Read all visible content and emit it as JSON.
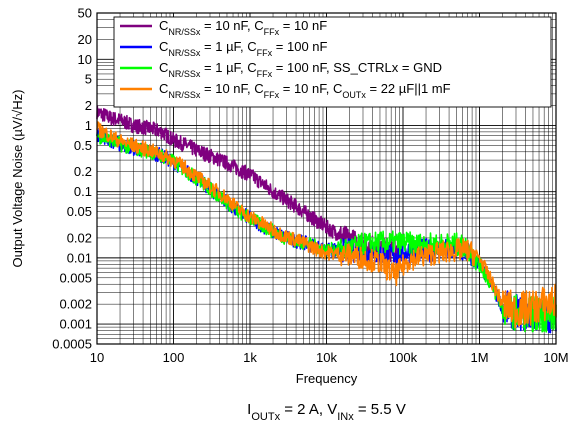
{
  "chart_data": {
    "type": "line",
    "xlabel": "Frequency",
    "ylabel": "Output Voltage Noise (µV/√Hz)",
    "xscale": "log",
    "yscale": "log",
    "xlim": [
      10,
      10000000
    ],
    "ylim": [
      0.0005,
      50
    ],
    "grid": true,
    "legend_position": "top-right",
    "xticks": [
      {
        "value": 10,
        "label": "10"
      },
      {
        "value": 100,
        "label": "100"
      },
      {
        "value": 1000,
        "label": "1k"
      },
      {
        "value": 10000,
        "label": "10k"
      },
      {
        "value": 100000,
        "label": "100k"
      },
      {
        "value": 1000000,
        "label": "1M"
      },
      {
        "value": 10000000,
        "label": "10M"
      }
    ],
    "yticks": [
      {
        "value": 50,
        "label": "50"
      },
      {
        "value": 20,
        "label": "20"
      },
      {
        "value": 10,
        "label": "10"
      },
      {
        "value": 5,
        "label": "5"
      },
      {
        "value": 2,
        "label": "2"
      },
      {
        "value": 1,
        "label": "1"
      },
      {
        "value": 0.5,
        "label": "0.5"
      },
      {
        "value": 0.2,
        "label": "0.2"
      },
      {
        "value": 0.1,
        "label": "0.1"
      },
      {
        "value": 0.05,
        "label": "0.05"
      },
      {
        "value": 0.02,
        "label": "0.02"
      },
      {
        "value": 0.01,
        "label": "0.01"
      },
      {
        "value": 0.005,
        "label": "0.005"
      },
      {
        "value": 0.002,
        "label": "0.002"
      },
      {
        "value": 0.001,
        "label": "0.001"
      },
      {
        "value": 0.0005,
        "label": "0.0005"
      }
    ],
    "series": [
      {
        "name": "C_NR/SSx = 10 nF, C_FFx = 10 nF",
        "legend_parts": [
          [
            "C",
            ""
          ],
          [
            "NR/SSx",
            "sub"
          ],
          [
            " = 10 nF, C",
            ""
          ],
          [
            "FFx",
            "sub"
          ],
          [
            " = 10 nF",
            ""
          ]
        ],
        "color": "#7f007f",
        "x": [
          10,
          15,
          20,
          30,
          50,
          70,
          100,
          150,
          200,
          300,
          500,
          700,
          1000,
          1500,
          2000,
          3000,
          5000,
          7000,
          10000,
          15000,
          20000,
          30000,
          50000,
          70000,
          100000
        ],
        "y": [
          1.6,
          1.3,
          1.2,
          1.0,
          0.9,
          0.8,
          0.6,
          0.5,
          0.42,
          0.35,
          0.27,
          0.22,
          0.18,
          0.13,
          0.1,
          0.075,
          0.05,
          0.038,
          0.029,
          0.022,
          0.019,
          0.016,
          0.014,
          0.013,
          0.013
        ]
      },
      {
        "name": "C_NR/SSx = 1 µF, C_FFx = 100 nF",
        "legend_parts": [
          [
            "C",
            ""
          ],
          [
            "NR/SSx",
            "sub"
          ],
          [
            " = 1 µF, C",
            ""
          ],
          [
            "FFx",
            "sub"
          ],
          [
            " = 100 nF",
            ""
          ]
        ],
        "color": "#0000ff",
        "x": [
          10,
          15,
          20,
          30,
          50,
          70,
          100,
          150,
          200,
          300,
          500,
          700,
          1000,
          1500,
          2000,
          3000,
          5000,
          7000,
          10000,
          20000,
          30000,
          50000,
          70000,
          100000,
          150000,
          200000,
          300000,
          500000,
          700000,
          1000000,
          1500000,
          2000000,
          3000000,
          5000000,
          7000000,
          10000000
        ],
        "y": [
          0.75,
          0.6,
          0.52,
          0.45,
          0.4,
          0.35,
          0.28,
          0.2,
          0.16,
          0.11,
          0.07,
          0.05,
          0.04,
          0.03,
          0.025,
          0.02,
          0.017,
          0.015,
          0.013,
          0.013,
          0.012,
          0.011,
          0.011,
          0.012,
          0.013,
          0.013,
          0.013,
          0.013,
          0.012,
          0.008,
          0.0035,
          0.0018,
          0.0015,
          0.0014,
          0.0014,
          0.0014
        ]
      },
      {
        "name": "C_NR/SSx = 1 µF, C_FFx = 100 nF, SS_CTRLx = GND",
        "legend_parts": [
          [
            "C",
            ""
          ],
          [
            "NR/SSx",
            "sub"
          ],
          [
            " = 1 µF, C",
            ""
          ],
          [
            "FFx",
            "sub"
          ],
          [
            " = 100 nF, SS_CTRLx = GND",
            ""
          ]
        ],
        "color": "#00ff00",
        "x": [
          10,
          15,
          20,
          30,
          50,
          70,
          100,
          150,
          200,
          300,
          500,
          700,
          1000,
          1500,
          2000,
          3000,
          5000,
          7000,
          10000,
          20000,
          30000,
          50000,
          70000,
          100000,
          150000,
          200000,
          300000,
          500000,
          700000,
          1000000,
          1500000,
          2000000,
          3000000,
          5000000,
          7000000,
          10000000
        ],
        "y": [
          0.7,
          0.6,
          0.52,
          0.45,
          0.4,
          0.35,
          0.28,
          0.2,
          0.16,
          0.11,
          0.07,
          0.05,
          0.04,
          0.03,
          0.025,
          0.02,
          0.017,
          0.015,
          0.013,
          0.014,
          0.016,
          0.017,
          0.017,
          0.017,
          0.016,
          0.016,
          0.016,
          0.016,
          0.014,
          0.008,
          0.0035,
          0.0018,
          0.0015,
          0.0014,
          0.0014,
          0.0014
        ]
      },
      {
        "name": "C_NR/SSx = 10 nF, C_FFx = 10 nF, C_OUTx = 22 µF||1 mF",
        "legend_parts": [
          [
            "C",
            ""
          ],
          [
            "NR/SSx",
            "sub"
          ],
          [
            " = 10 nF, C",
            ""
          ],
          [
            "FFx",
            "sub"
          ],
          [
            " = 10 nF, C",
            ""
          ],
          [
            "OUTx",
            "sub"
          ],
          [
            " = 22 µF||1 mF",
            ""
          ]
        ],
        "color": "#ff8000",
        "x": [
          10,
          15,
          20,
          30,
          50,
          70,
          100,
          150,
          200,
          300,
          500,
          700,
          1000,
          1500,
          2000,
          3000,
          5000,
          7000,
          10000,
          20000,
          30000,
          50000,
          70000,
          80000,
          100000,
          120000,
          150000,
          200000,
          300000,
          500000,
          700000,
          1000000,
          1500000,
          2000000,
          3000000,
          5000000,
          7000000,
          10000000
        ],
        "y": [
          0.9,
          0.7,
          0.58,
          0.5,
          0.42,
          0.36,
          0.3,
          0.22,
          0.17,
          0.12,
          0.08,
          0.055,
          0.042,
          0.032,
          0.026,
          0.021,
          0.017,
          0.014,
          0.012,
          0.011,
          0.01,
          0.0085,
          0.006,
          0.0055,
          0.0075,
          0.0095,
          0.01,
          0.011,
          0.012,
          0.013,
          0.013,
          0.01,
          0.004,
          0.002,
          0.0016,
          0.0018,
          0.002,
          0.0022
        ]
      }
    ],
    "caption_parts": [
      [
        "I",
        ""
      ],
      [
        "OUTx",
        "sub"
      ],
      [
        " = 2 A, V",
        ""
      ],
      [
        "INx",
        "sub"
      ],
      [
        " = 5.5 V",
        ""
      ]
    ]
  }
}
